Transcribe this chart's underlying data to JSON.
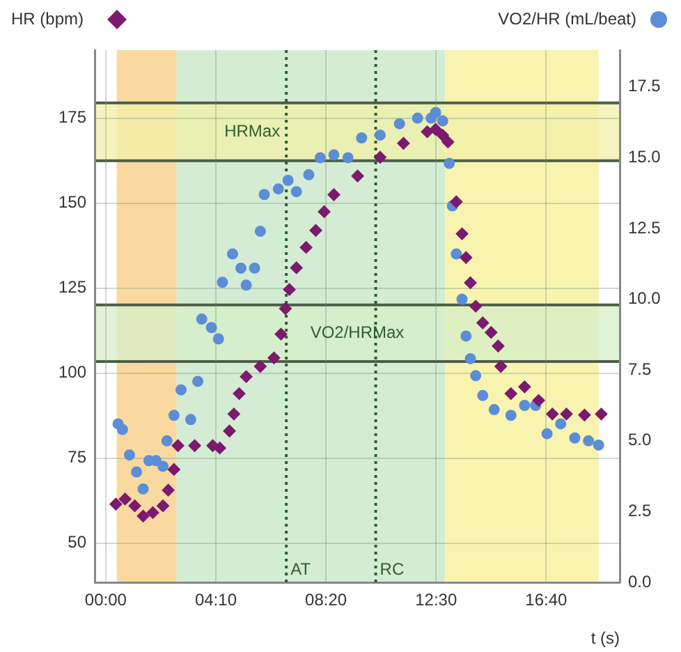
{
  "chart_data": {
    "type": "scatter",
    "xlabel": "t (s)",
    "legend": "top",
    "xlim": [
      -25,
      1167
    ],
    "xticks": [
      {
        "value": 0,
        "label": "00:00"
      },
      {
        "value": 250,
        "label": "04:10"
      },
      {
        "value": 500,
        "label": "08:20"
      },
      {
        "value": 750,
        "label": "12:30"
      },
      {
        "value": 1000,
        "label": "16:40"
      }
    ],
    "ylim": [
      38.5,
      195
    ],
    "yticks": [
      50,
      75,
      100,
      125,
      150,
      175
    ],
    "y2lim": [
      0,
      18.8
    ],
    "y2ticks": [
      {
        "value": 0,
        "label": "0.0"
      },
      {
        "value": 2.5,
        "label": "2.5"
      },
      {
        "value": 5,
        "label": "5.0"
      },
      {
        "value": 7.5,
        "label": "7.5"
      },
      {
        "value": 10,
        "label": "10.0"
      },
      {
        "value": 12.5,
        "label": "12.5"
      },
      {
        "value": 15,
        "label": "15.0"
      },
      {
        "value": 17.5,
        "label": "17.5"
      }
    ],
    "grid": true,
    "series": [
      {
        "name": "HR (bpm)",
        "color": "#7b1a6e",
        "marker": "diamond",
        "x": [
          23,
          44,
          66,
          85,
          107,
          130,
          142,
          155,
          164,
          202,
          243,
          259,
          281,
          291,
          303,
          319,
          351,
          382,
          398,
          408,
          417,
          433,
          455,
          477,
          496,
          518,
          572,
          623,
          676,
          730,
          749,
          765,
          777,
          796,
          809,
          818,
          828,
          840,
          856,
          875,
          891,
          897,
          920,
          951,
          983,
          1014,
          1046,
          1087,
          1125
        ],
        "values": [
          61.5,
          63,
          61,
          58,
          59,
          61,
          65.6,
          71.7,
          78.7,
          78.7,
          78.7,
          78,
          83,
          88,
          94,
          99,
          102,
          104.5,
          111.5,
          119,
          124.6,
          131,
          137,
          142,
          147.5,
          152.5,
          158,
          163.5,
          167.6,
          171,
          171.7,
          170,
          168,
          150.4,
          141,
          134,
          126.6,
          119.7,
          114.8,
          112,
          108,
          102,
          94,
          96,
          92,
          88,
          88,
          87.7,
          88
        ]
      },
      {
        "name": "VO2/HR (mL/beat)",
        "color": "#5b8ed6",
        "marker": "circle",
        "axis": "y2",
        "x": [
          28,
          38,
          54,
          70,
          85,
          98,
          114,
          130,
          139,
          155,
          171,
          193,
          209,
          218,
          240,
          256,
          265,
          288,
          307,
          319,
          338,
          351,
          360,
          392,
          414,
          433,
          461,
          487,
          518,
          550,
          581,
          623,
          667,
          708,
          739,
          749,
          765,
          780,
          787,
          796,
          809,
          818,
          828,
          840,
          856,
          882,
          920,
          951,
          976,
          1002,
          1033,
          1065,
          1096,
          1119
        ],
        "values": [
          5.6,
          5.4,
          4.5,
          3.9,
          3.3,
          4.3,
          4.3,
          4.1,
          5,
          5.9,
          6.8,
          5.75,
          7.1,
          9.3,
          9,
          8.6,
          10.6,
          11.6,
          11.1,
          10.5,
          11.1,
          12.4,
          13.7,
          13.9,
          14.2,
          13.8,
          14.4,
          15,
          15.1,
          15,
          15.7,
          15.8,
          16.2,
          16.4,
          16.4,
          16.6,
          16.3,
          14.8,
          13.3,
          11.6,
          10,
          8.7,
          7.9,
          7.3,
          6.6,
          6.1,
          5.9,
          6.25,
          6.25,
          5.25,
          5.6,
          5.1,
          5,
          4.85
        ]
      }
    ],
    "bands": [
      {
        "axis": "x",
        "from": 25,
        "to": 161,
        "color": "#f9d9a0"
      },
      {
        "axis": "x",
        "from": 161,
        "to": 771,
        "color": "#d4ecd4"
      },
      {
        "axis": "x",
        "from": 771,
        "to": 1119,
        "color": "#f8f4b0"
      },
      {
        "axis": "y",
        "from": 162.5,
        "to": 179.5,
        "label": "HRMax",
        "color": "#f2f0a8"
      },
      {
        "axis": "y2",
        "from": 7.8,
        "to": 9.8,
        "label": "VO2/HRMax",
        "color": "#d6efc8"
      }
    ],
    "ref_lines": [
      {
        "axis": "x",
        "value": 410,
        "label": "AT",
        "color": "#2f5f2f",
        "line_style": "dotted"
      },
      {
        "axis": "x",
        "value": 613,
        "label": "RC",
        "color": "#2f5f2f",
        "line_style": "dotted"
      }
    ]
  }
}
